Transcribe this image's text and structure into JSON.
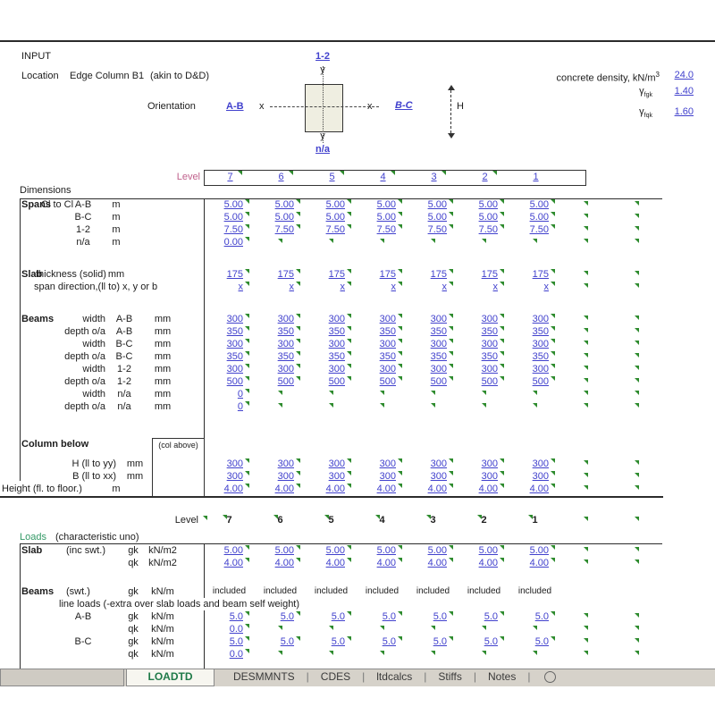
{
  "colors": {
    "link_blue": "#4141cd",
    "marker_green": "#2e8b2e",
    "level_label_pink": "#c0618c",
    "loads_green": "#339966",
    "active_tab_green": "#1f7a48",
    "tabbar_grey": "#d6d2ca",
    "column_fill": "#efeee1"
  },
  "header": {
    "title": "INPUT",
    "location_label": "Location",
    "location_value": "Edge Column B1",
    "location_note": "(akin to D&D)",
    "orientation_label": "Orientation",
    "orientation_ab_link": "A-B",
    "orientation_bc_link": "B-C",
    "grid_top_link": "1-2",
    "grid_bottom_link": "n/a",
    "axis_x_left": "x",
    "axis_x_right": "x",
    "axis_y_top": "y",
    "axis_y_bottom": "y",
    "height_symbol": "H",
    "density_label": "concrete density, kN/m",
    "density_sup": "3",
    "density_value": "24.0",
    "gamma_g_symbol": "γ",
    "gamma_g_sub": "fgk",
    "gamma_g_value": "1.40",
    "gamma_q_symbol": "γ",
    "gamma_q_sub": "fqk",
    "gamma_q_value": "1.60"
  },
  "level_header": {
    "label": "Level",
    "values": [
      "7",
      "6",
      "5",
      "4",
      "3",
      "2",
      "1"
    ]
  },
  "dimensions": {
    "title": "Dimensions",
    "col_above_note": "(col above)",
    "rows": [
      {
        "c1": "Spans",
        "c2a": "Cl to Cl",
        "c3a": "A-B",
        "u1": "m",
        "v": [
          "5.00",
          "5.00",
          "5.00",
          "5.00",
          "5.00",
          "5.00",
          "5.00"
        ]
      },
      {
        "c3a": "B-C",
        "u1": "m",
        "v": [
          "5.00",
          "5.00",
          "5.00",
          "5.00",
          "5.00",
          "5.00",
          "5.00"
        ]
      },
      {
        "c3a": "1-2",
        "u1": "m",
        "v": [
          "7.50",
          "7.50",
          "7.50",
          "7.50",
          "7.50",
          "7.50",
          "7.50"
        ]
      },
      {
        "c3a": "n/a",
        "u1": "m",
        "v": [
          "0.00",
          "",
          "",
          "",
          "",
          "",
          ""
        ]
      },
      {
        "gap": 22
      },
      {
        "c1": "Slab",
        "cw": "thickness (solid)",
        "u1": "mm",
        "v": [
          "175",
          "175",
          "175",
          "175",
          "175",
          "175",
          "175"
        ]
      },
      {
        "wide": "span direction,(ll to) x, y or b",
        "v": [
          "x",
          "x",
          "x",
          "x",
          "x",
          "x",
          "x"
        ]
      },
      {
        "gap": 22
      },
      {
        "c1": "Beams",
        "c2r2": "width",
        "c3b": "A-B",
        "u3": "mm",
        "v": [
          "300",
          "300",
          "300",
          "300",
          "300",
          "300",
          "300"
        ]
      },
      {
        "c2r2": "depth o/a",
        "c3b": "A-B",
        "u3": "mm",
        "v": [
          "350",
          "350",
          "350",
          "350",
          "350",
          "350",
          "350"
        ]
      },
      {
        "c2r2": "width",
        "c3b": "B-C",
        "u3": "mm",
        "v": [
          "300",
          "300",
          "300",
          "300",
          "300",
          "300",
          "300"
        ]
      },
      {
        "c2r2": "depth o/a",
        "c3b": "B-C",
        "u3": "mm",
        "v": [
          "350",
          "350",
          "350",
          "350",
          "350",
          "350",
          "350"
        ]
      },
      {
        "c2r2": "width",
        "c3b": "1-2",
        "u3": "mm",
        "v": [
          "300",
          "300",
          "300",
          "300",
          "300",
          "300",
          "300"
        ]
      },
      {
        "c2r2": "depth o/a",
        "c3b": "1-2",
        "u3": "mm",
        "v": [
          "500",
          "500",
          "500",
          "500",
          "500",
          "500",
          "500"
        ]
      },
      {
        "c2r2": "width",
        "c3b": "n/a",
        "u3": "mm",
        "v": [
          "0",
          "",
          "",
          "",
          "",
          "",
          ""
        ]
      },
      {
        "c2r2": "depth o/a",
        "c3b": "n/a",
        "u3": "mm",
        "v": [
          "0",
          "",
          "",
          "",
          "",
          "",
          ""
        ]
      },
      {
        "gap": 28
      },
      {
        "c1": "Column below",
        "h": 22
      },
      {
        "cr": "H (ll to yy)",
        "u2": "mm",
        "v": [
          "300",
          "300",
          "300",
          "300",
          "300",
          "300",
          "300"
        ]
      },
      {
        "cr": "B (ll to xx)",
        "u2": "mm",
        "v": [
          "300",
          "300",
          "300",
          "300",
          "300",
          "300",
          "300"
        ]
      },
      {
        "c0": "Height (fl. to floor.)",
        "u1": "m",
        "v": [
          "4.00",
          "4.00",
          "4.00",
          "4.00",
          "4.00",
          "4.00",
          "4.00"
        ]
      }
    ]
  },
  "level_header2": {
    "label": "Level",
    "values": [
      "7",
      "6",
      "5",
      "4",
      "3",
      "2",
      "1"
    ]
  },
  "loads": {
    "title": "Loads",
    "subtitle": "(characteristic uno)",
    "rows": [
      {
        "c1": "Slab",
        "c2": "(inc swt.)",
        "c3c": "gk",
        "u3": "kN/m2",
        "v": [
          "5.00",
          "5.00",
          "5.00",
          "5.00",
          "5.00",
          "5.00",
          "5.00"
        ]
      },
      {
        "c3c": "qk",
        "u3": "kN/m2",
        "v": [
          "4.00",
          "4.00",
          "4.00",
          "4.00",
          "4.00",
          "4.00",
          "4.00"
        ]
      },
      {
        "gap": 18
      },
      {
        "c1": "Beams",
        "c2": "(swt.)",
        "c3c": "gk",
        "u3": "kN/m",
        "plain": true,
        "markers": false,
        "v": [
          "included",
          "included",
          "included",
          "included",
          "included",
          "included",
          "included"
        ]
      },
      {
        "noteline": "line loads (-extra over slab loads and beam self weight)",
        "markers": false
      },
      {
        "c3a": "A-B",
        "c3c": "gk",
        "u3": "kN/m",
        "v": [
          "5.0",
          "5.0",
          "5.0",
          "5.0",
          "5.0",
          "5.0",
          "5.0"
        ]
      },
      {
        "c3c": "qk",
        "u3": "kN/m",
        "v": [
          "0.0",
          "",
          "",
          "",
          "",
          "",
          ""
        ]
      },
      {
        "c3a": "B-C",
        "c3c": "gk",
        "u3": "kN/m",
        "v": [
          "5.0",
          "5.0",
          "5.0",
          "5.0",
          "5.0",
          "5.0",
          "5.0"
        ]
      },
      {
        "c3c": "qk",
        "u3": "kN/m",
        "v": [
          "0.0",
          "",
          "",
          "",
          "",
          "",
          ""
        ]
      }
    ]
  },
  "tabs": {
    "active": "LOADTD",
    "items": [
      "DESMMNTS",
      "CDES",
      "ltdcalcs",
      "Stiffs",
      "Notes"
    ]
  }
}
